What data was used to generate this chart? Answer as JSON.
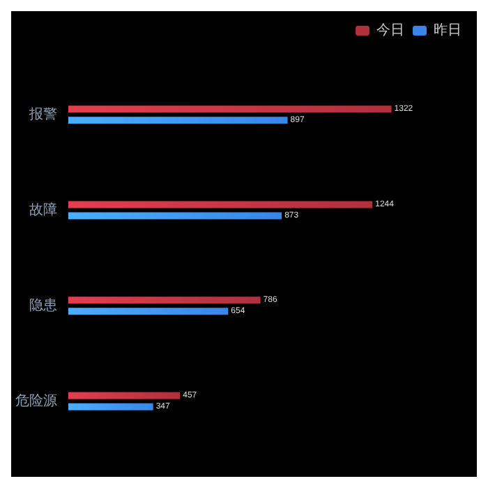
{
  "chart_data": {
    "type": "bar",
    "orientation": "horizontal",
    "categories": [
      "报警",
      "故障",
      "隐患",
      "危险源"
    ],
    "series": [
      {
        "name": "今日",
        "color": "#b0303c",
        "values": [
          1322,
          1244,
          786,
          457
        ]
      },
      {
        "name": "昨日",
        "color": "#3a86e8",
        "values": [
          897,
          873,
          654,
          347
        ]
      }
    ],
    "data_labels": true,
    "legend": "top right",
    "grid": false,
    "tick_labels": "y"
  }
}
